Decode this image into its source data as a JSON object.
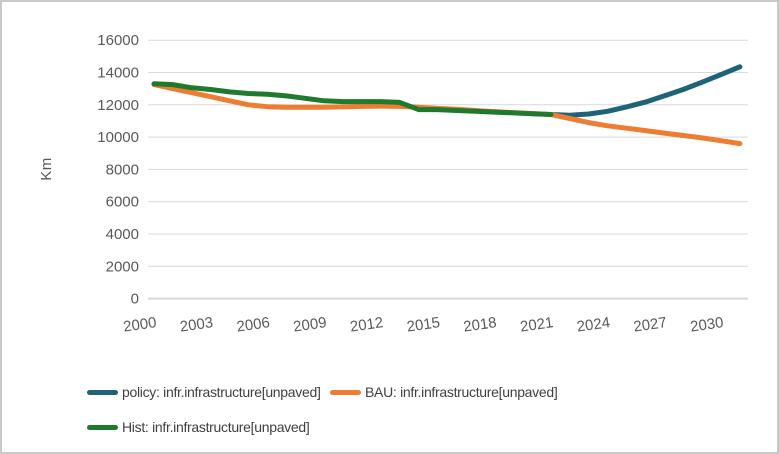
{
  "chart_data": {
    "type": "line",
    "title": "",
    "xlabel": "",
    "ylabel": "Km",
    "xlim": [
      2000,
      2031
    ],
    "ylim": [
      0,
      16000
    ],
    "x_ticks": [
      2000,
      2003,
      2006,
      2009,
      2012,
      2015,
      2018,
      2021,
      2024,
      2027,
      2030
    ],
    "y_ticks": [
      0,
      2000,
      4000,
      6000,
      8000,
      10000,
      12000,
      14000,
      16000
    ],
    "grid": "horizontal",
    "gridline_color": "#d9d9d9",
    "axis_label_color": "#595959",
    "legend_position": "bottom-left",
    "legend_text_color": "#404040",
    "series": [
      {
        "key": "policy",
        "name": "policy: infr.infrastructure[unpaved]",
        "color": "#1f6378",
        "x_start": 2021,
        "values": [
          11400,
          11350,
          11430,
          11600,
          11870,
          12170,
          12550,
          12950,
          13400,
          13870,
          14350
        ]
      },
      {
        "key": "bau",
        "name": "BAU: infr.infrastructure[unpaved]",
        "color": "#ed7d31",
        "x_start": 2000,
        "values": [
          13250,
          13000,
          12750,
          12500,
          12250,
          12000,
          11880,
          11850,
          11850,
          11850,
          11870,
          11900,
          11920,
          11900,
          11850,
          11780,
          11720,
          11650,
          11580,
          11520,
          11460,
          11400,
          11150,
          10900,
          10700,
          10550,
          10400,
          10250,
          10100,
          9950,
          9780,
          9600
        ]
      },
      {
        "key": "hist",
        "name": "Hist: infr.infrastructure[unpaved]",
        "color": "#1f7a2d",
        "x_start": 2000,
        "values": [
          13300,
          13250,
          13050,
          12950,
          12800,
          12700,
          12650,
          12550,
          12400,
          12250,
          12200,
          12200,
          12200,
          12150,
          11700,
          11700,
          11650,
          11600,
          11550,
          11500,
          11450,
          11400
        ]
      }
    ]
  }
}
